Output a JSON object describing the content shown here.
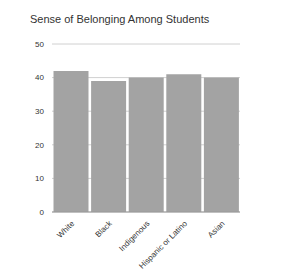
{
  "chart_data": {
    "type": "bar",
    "title": "Sense of Belonging Among Students",
    "categories": [
      "White",
      "Black",
      "Indigenous",
      "Hispanic or Latino",
      "Asian"
    ],
    "values": [
      42,
      39,
      40,
      41,
      40
    ],
    "color": "#a3a3a3",
    "ylim": [
      0,
      50
    ],
    "yticks": [
      0,
      10,
      20,
      30,
      40,
      50
    ],
    "grid": true
  }
}
